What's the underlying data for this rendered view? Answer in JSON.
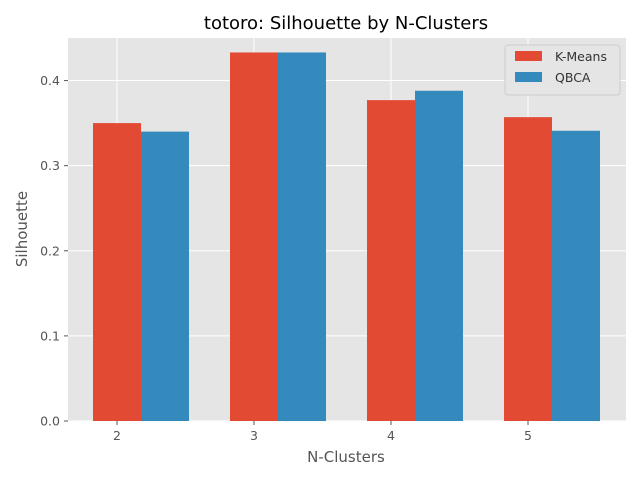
{
  "chart_data": {
    "type": "bar",
    "title": "totoro: Silhouette by N-Clusters",
    "xlabel": "N-Clusters",
    "ylabel": "Silhouette",
    "categories": [
      "2",
      "3",
      "4",
      "5"
    ],
    "series": [
      {
        "name": "K-Means",
        "color": "#E24A33",
        "values": [
          0.35,
          0.433,
          0.377,
          0.357
        ]
      },
      {
        "name": "QBCA",
        "color": "#348ABD",
        "values": [
          0.34,
          0.433,
          0.388,
          0.341
        ]
      }
    ],
    "ylim": [
      0,
      0.45
    ],
    "yticks": [
      0.0,
      0.1,
      0.2,
      0.3,
      0.4
    ],
    "ytick_labels": [
      "0.0",
      "0.1",
      "0.2",
      "0.3",
      "0.4"
    ],
    "grid": true,
    "legend_position": "top-right",
    "background_color": "#E5E5E5",
    "grid_color": "#FFFFFF"
  }
}
